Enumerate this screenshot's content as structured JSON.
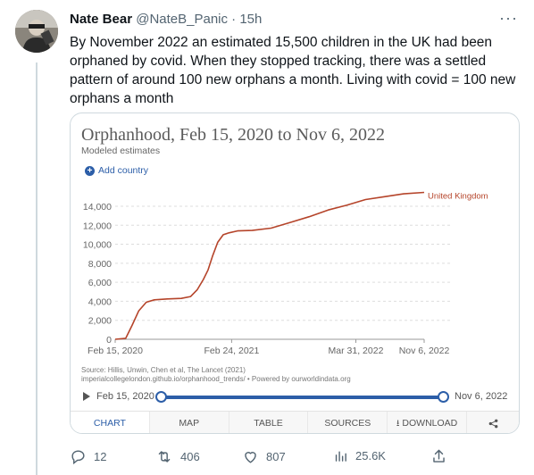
{
  "tweet": {
    "author_name": "Nate Bear",
    "handle": "@NateB_Panic",
    "separator": "·",
    "time": "15h",
    "more_icon": "more-horizontal-icon",
    "text": "By November 2022 an estimated 15,500 children in the UK had been orphaned by covid. When they stopped tracking, there was a settled pattern of around 100 new orphans a month. Living with covid = 100 new orphans a month"
  },
  "card": {
    "add_country_label": "Add country",
    "source_line1": "Source: Hillis, Unwin, Chen et al, The Lancet (2021)",
    "source_line2": "imperialcollegelondon.github.io/orphanhood_trends/ • Powered by ourworldindata.org",
    "timeline": {
      "start_label": "Feb 15, 2020",
      "end_label": "Nov 6, 2022",
      "start_fraction": 0.0,
      "end_fraction": 1.0
    },
    "tabs": [
      {
        "label": "CHART",
        "active": true
      },
      {
        "label": "MAP",
        "active": false
      },
      {
        "label": "TABLE",
        "active": false
      },
      {
        "label": "SOURCES",
        "active": false
      },
      {
        "label": "DOWNLOAD",
        "active": false
      }
    ],
    "share_icon": "share-icon",
    "download_icon": "download-icon"
  },
  "chart_data": {
    "type": "line",
    "title": "Orphanhood, Feb 15, 2020 to Nov 6, 2022",
    "subtitle": "Modeled estimates",
    "xlabel": "",
    "ylabel": "",
    "x_tick_labels": [
      "Feb 15, 2020",
      "Feb 24, 2021",
      "Mar 31, 2022",
      "Nov 6, 2022"
    ],
    "y_ticks": [
      0,
      2000,
      4000,
      6000,
      8000,
      10000,
      12000,
      14000
    ],
    "y_tick_labels": [
      "0",
      "2,000",
      "4,000",
      "6,000",
      "8,000",
      "10,000",
      "12,000",
      "14,000"
    ],
    "ylim": [
      0,
      15500
    ],
    "xlim": [
      "2020-02-15",
      "2022-11-06"
    ],
    "grid": true,
    "series_color": "#b5442a",
    "series": [
      {
        "name": "United Kingdom",
        "points": [
          [
            "2020-02-15",
            0
          ],
          [
            "2020-03-20",
            100
          ],
          [
            "2020-04-10",
            1500
          ],
          [
            "2020-05-01",
            3000
          ],
          [
            "2020-05-25",
            3900
          ],
          [
            "2020-06-20",
            4150
          ],
          [
            "2020-08-01",
            4250
          ],
          [
            "2020-09-15",
            4300
          ],
          [
            "2020-10-15",
            4500
          ],
          [
            "2020-11-05",
            5200
          ],
          [
            "2020-11-25",
            6300
          ],
          [
            "2020-12-10",
            7300
          ],
          [
            "2020-12-25",
            8800
          ],
          [
            "2021-01-10",
            10200
          ],
          [
            "2021-01-28",
            11000
          ],
          [
            "2021-02-15",
            11200
          ],
          [
            "2021-03-15",
            11400
          ],
          [
            "2021-05-01",
            11450
          ],
          [
            "2021-07-01",
            11700
          ],
          [
            "2021-09-01",
            12300
          ],
          [
            "2021-11-01",
            12900
          ],
          [
            "2022-01-01",
            13600
          ],
          [
            "2022-03-01",
            14100
          ],
          [
            "2022-05-01",
            14700
          ],
          [
            "2022-07-01",
            15000
          ],
          [
            "2022-09-01",
            15300
          ],
          [
            "2022-11-06",
            15450
          ]
        ]
      }
    ]
  },
  "actions": [
    {
      "icon": "reply-icon",
      "count": "12"
    },
    {
      "icon": "retweet-icon",
      "count": "406"
    },
    {
      "icon": "like-icon",
      "count": "807"
    },
    {
      "icon": "views-icon",
      "count": "25.6K"
    },
    {
      "icon": "share-icon",
      "count": ""
    }
  ]
}
